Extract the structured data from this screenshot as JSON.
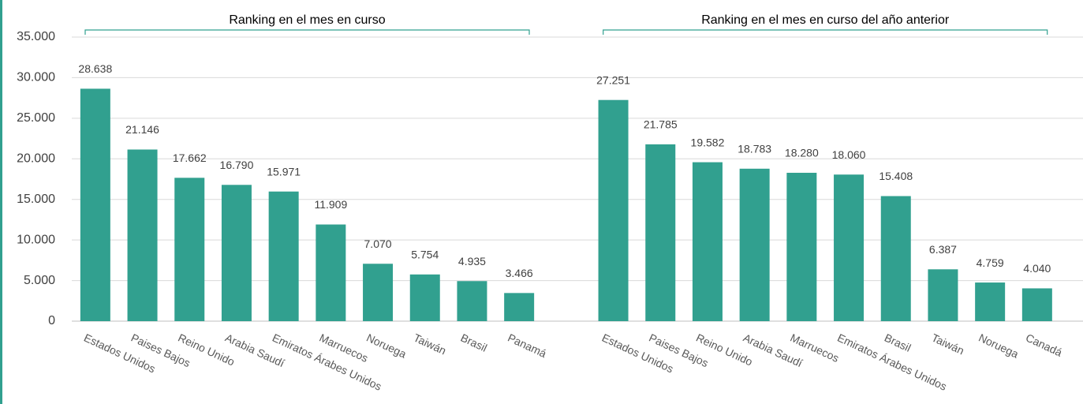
{
  "chart_data": {
    "type": "bar",
    "annotations": [
      "Ranking en el mes en curso",
      "Ranking en el mes en curso del año anterior"
    ],
    "categories": [
      "Estados Unidos",
      "Paises Bajos",
      "Reino Unido",
      "Arabia Saudí",
      "Emiratos Árabes Unidos",
      "Marruecos",
      "Noruega",
      "Taiwán",
      "Brasil",
      "Panamá",
      null,
      "Estados Unidos",
      "Paises Bajos",
      "Reino Unido",
      "Arabia Saudí",
      "Marruecos",
      "Emiratos Árabes Unidos",
      "Brasil",
      "Taiwán",
      "Noruega",
      "Canadá"
    ],
    "values": [
      28638,
      21146,
      17662,
      16790,
      15971,
      11909,
      7070,
      5754,
      4935,
      3466,
      null,
      27251,
      21785,
      19582,
      18783,
      18280,
      18060,
      15408,
      6387,
      4759,
      4040
    ],
    "value_labels": [
      "28.638",
      "21.146",
      "17.662",
      "16.790",
      "15.971",
      "11.909",
      "7.070",
      "5.754",
      "4.935",
      "3.466",
      null,
      "27.251",
      "21.785",
      "19.582",
      "18.783",
      "18.280",
      "18.060",
      "15.408",
      "6.387",
      "4.759",
      "4.040"
    ],
    "color": "#31a08f",
    "ylim": [
      0,
      35000
    ],
    "yticks": [
      0,
      {
        "value": 5000,
        "label": "5.000"
      },
      {
        "value": 10000,
        "label": "10.000"
      },
      {
        "value": 15000,
        "label": "15.000"
      },
      {
        "value": 20000,
        "label": "20.000"
      },
      {
        "value": 25000,
        "label": "25.000"
      },
      {
        "value": 30000,
        "label": "30.000"
      },
      {
        "value": 35000,
        "label": "35.000"
      }
    ],
    "grid": true
  }
}
